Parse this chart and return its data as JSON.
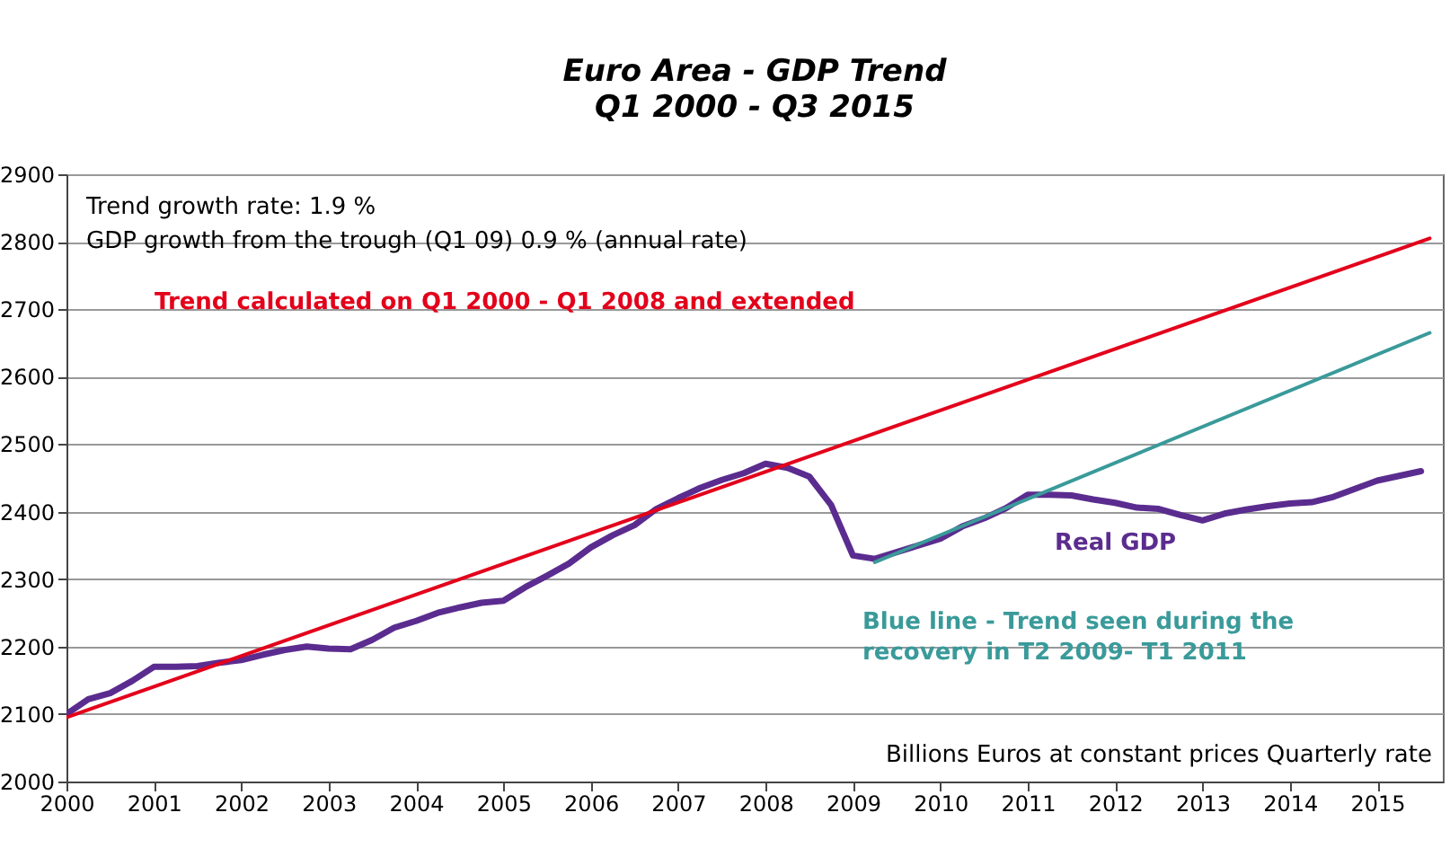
{
  "chart_data": {
    "type": "line",
    "title": "Euro Area - GDP Trend",
    "subtitle": "Q1 2000 - Q3 2015",
    "annotations": [
      "Trend growth rate: 1.9 %",
      "GDP growth from the trough (Q1 09) 0.9 % (annual rate)",
      "Trend calculated on Q1 2000 - Q1 2008 and extended",
      "Blue line - Trend seen during the\nrecovery  in T2 2009- T1 2011",
      "Billions  Euros at constant prices Quarterly rate"
    ],
    "xlim": [
      2000,
      2015.75
    ],
    "xticks": [
      2000,
      2001,
      2002,
      2003,
      2004,
      2005,
      2006,
      2007,
      2008,
      2009,
      2010,
      2011,
      2012,
      2013,
      2014,
      2015
    ],
    "ylim": [
      2000,
      2900
    ],
    "yticks": [
      2000,
      2100,
      2200,
      2300,
      2400,
      2500,
      2600,
      2700,
      2800,
      2900
    ],
    "grid": "y",
    "legend": false,
    "marker": "none",
    "line_style": "solid",
    "series": [
      {
        "name": "Real GDP",
        "color": "#5b2c8f",
        "x": [
          2000,
          2000.25,
          2000.5,
          2000.75,
          2001,
          2001.25,
          2001.5,
          2001.75,
          2002,
          2002.25,
          2002.5,
          2002.75,
          2003,
          2003.25,
          2003.5,
          2003.75,
          2004,
          2004.25,
          2004.5,
          2004.75,
          2005,
          2005.25,
          2005.5,
          2005.75,
          2006,
          2006.25,
          2006.5,
          2006.75,
          2007,
          2007.25,
          2007.5,
          2007.75,
          2008,
          2008.25,
          2008.5,
          2008.75,
          2009,
          2009.25,
          2009.5,
          2009.75,
          2010,
          2010.25,
          2010.5,
          2010.75,
          2011,
          2011.25,
          2011.5,
          2011.75,
          2012,
          2012.25,
          2012.5,
          2012.75,
          2013,
          2013.25,
          2013.5,
          2013.75,
          2014,
          2014.25,
          2014.5,
          2014.75,
          2015,
          2015.25,
          2015.5
        ],
        "values": [
          2100,
          2122,
          2131,
          2149,
          2170,
          2170,
          2171,
          2176,
          2180,
          2188,
          2195,
          2200,
          2197,
          2196,
          2210,
          2228,
          2238,
          2250,
          2258,
          2265,
          2268,
          2288,
          2305,
          2323,
          2347,
          2365,
          2380,
          2404,
          2420,
          2435,
          2447,
          2457,
          2471,
          2465,
          2452,
          2410,
          2335,
          2330,
          2340,
          2350,
          2360,
          2378,
          2390,
          2405,
          2425,
          2425,
          2424,
          2418,
          2413,
          2406,
          2404,
          2395,
          2387,
          2397,
          2403,
          2408,
          2412,
          2414,
          2422,
          2434,
          2446,
          2453,
          2460
        ]
      },
      {
        "color": "#e3001b",
        "x": [
          2000,
          2015.6
        ],
        "values": [
          2095,
          2805
        ]
      },
      {
        "color": "#3a9a9a",
        "x": [
          2009.25,
          2015.6
        ],
        "values": [
          2325,
          2665
        ]
      }
    ]
  }
}
